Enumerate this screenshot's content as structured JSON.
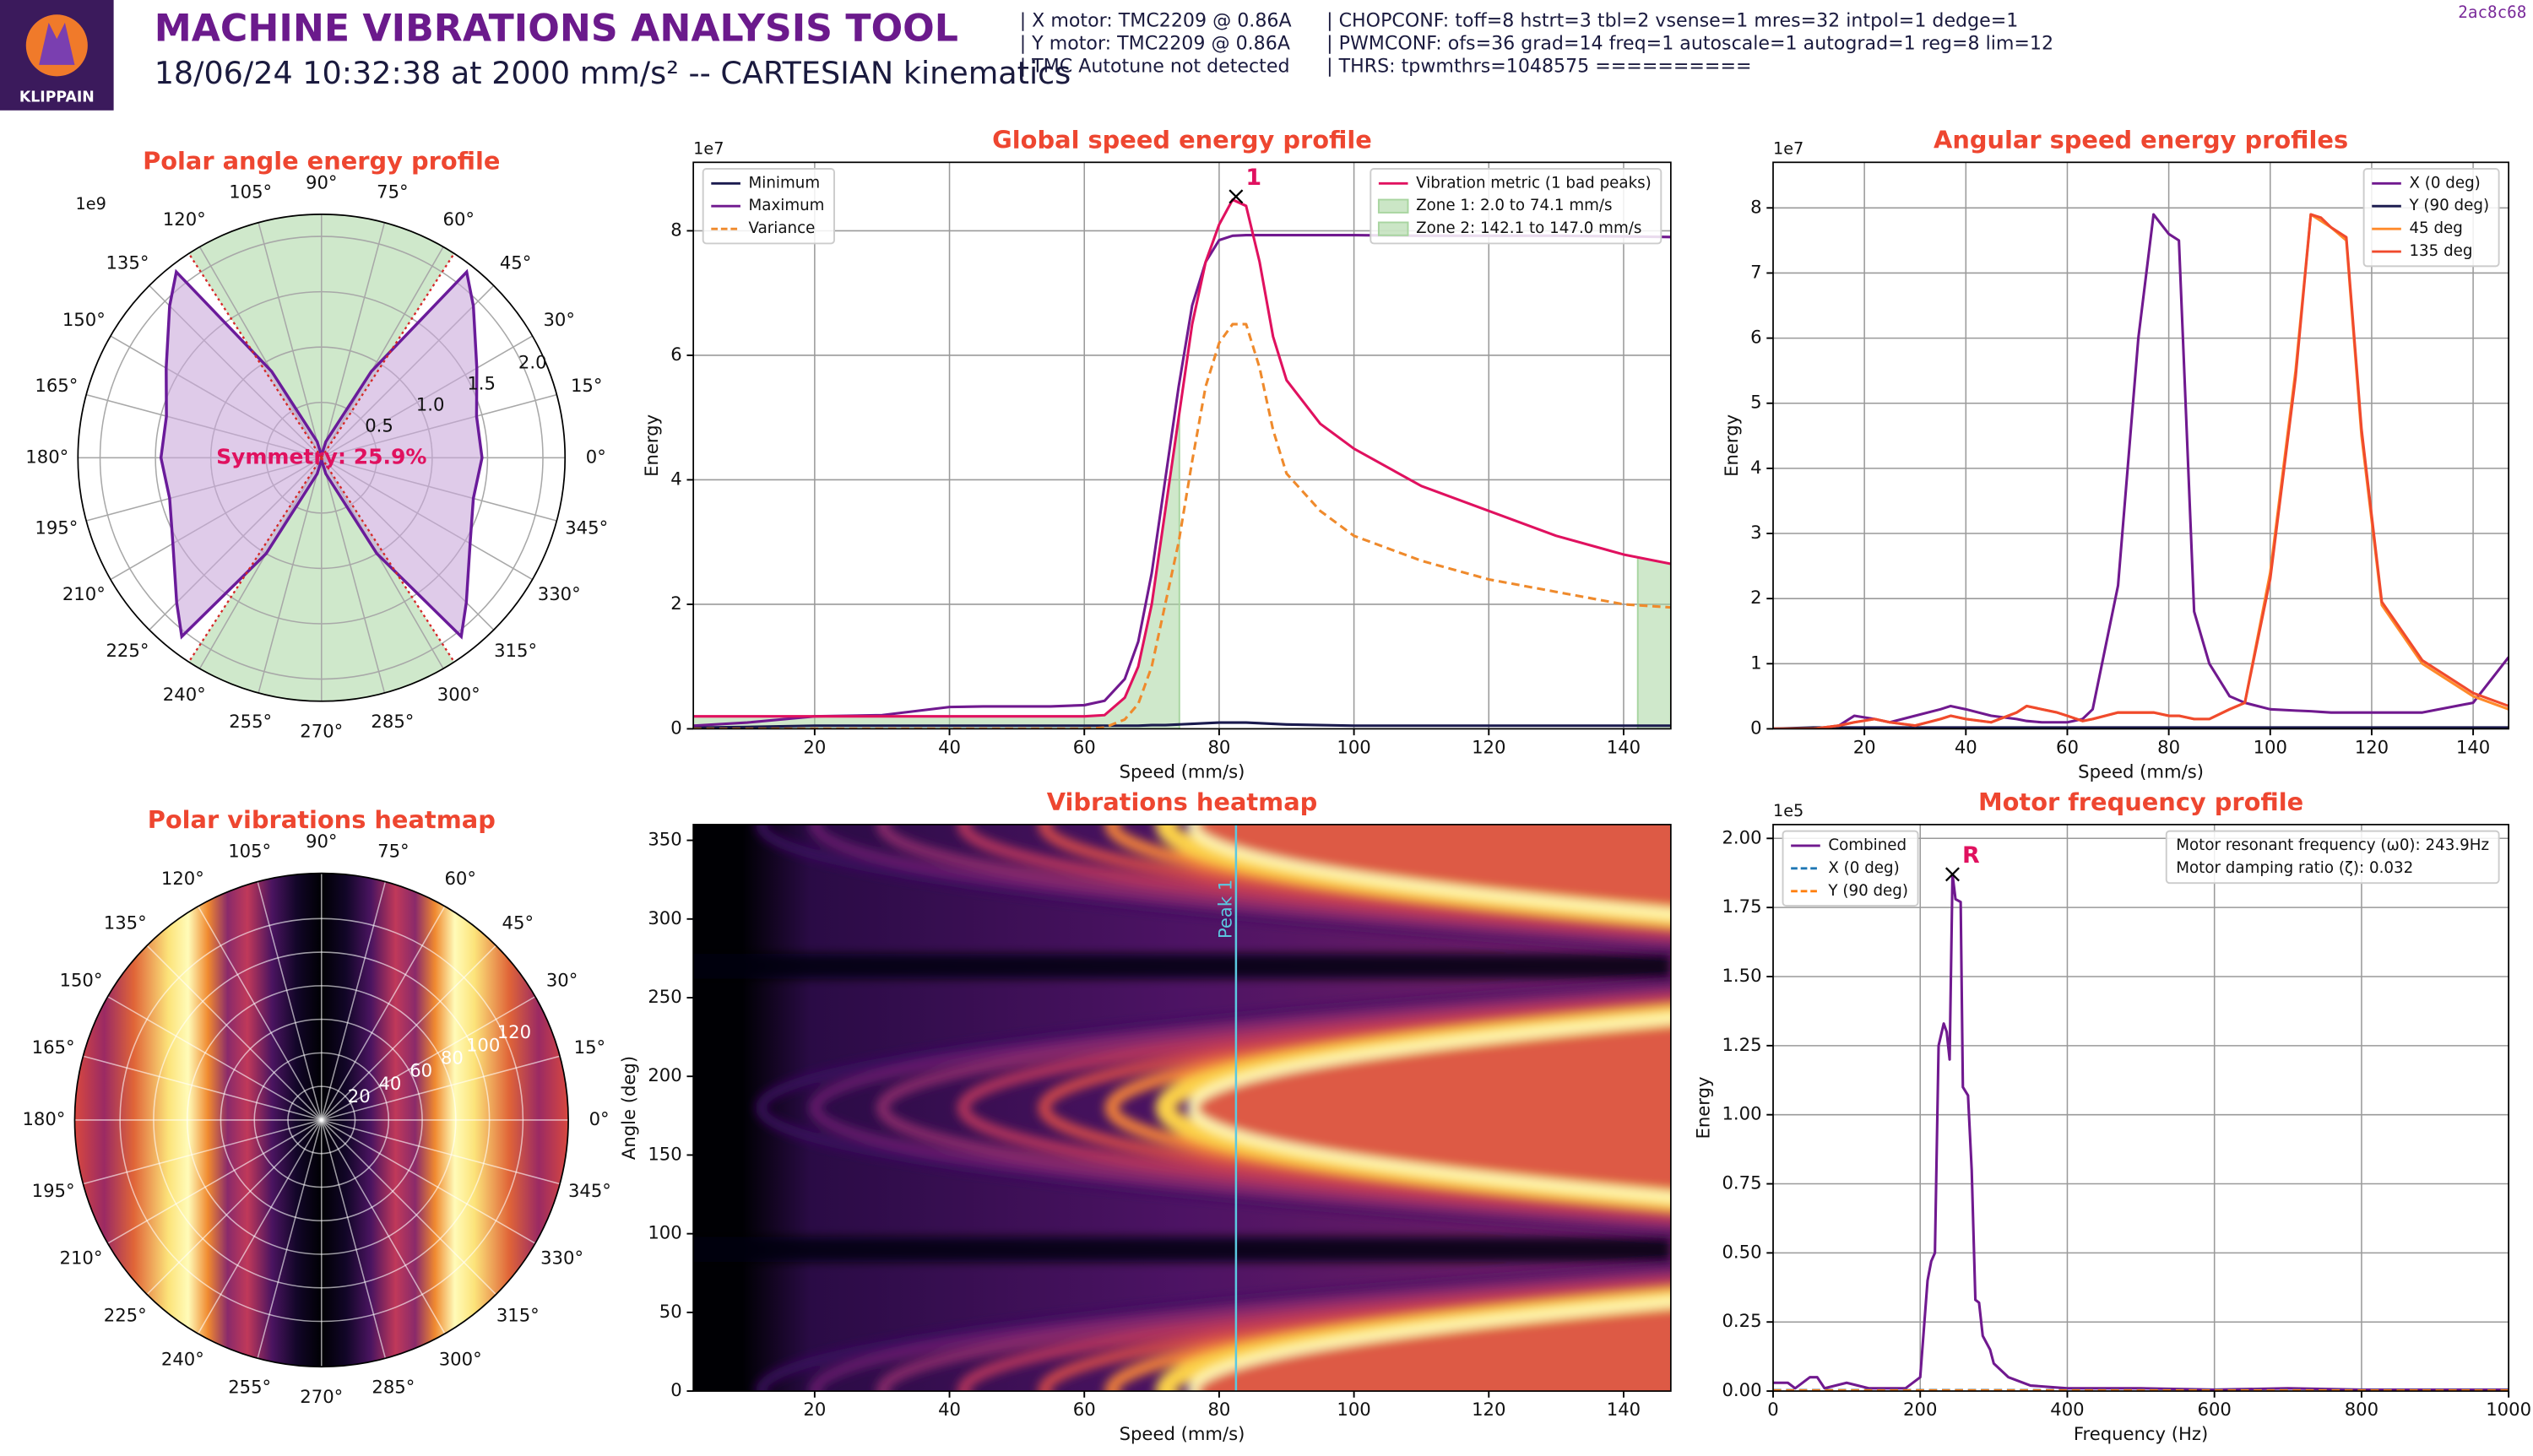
{
  "header": {
    "title": "MACHINE VIBRATIONS ANALYSIS TOOL",
    "subtitle": "18/06/24 10:32:38 at 2000 mm/s² -- CARTESIAN kinematics",
    "logo_text": "KLIPPAIN",
    "motor_info": [
      "| X motor: TMC2209 @ 0.86A",
      "| Y motor: TMC2209 @ 0.86A",
      "| TMC Autotune not detected"
    ],
    "tmc_info": [
      "| CHOPCONF: toff=8 hstrt=3 tbl=2 vsense=1 mres=32 intpol=1 dedge=1",
      "| PWMCONF: ofs=36 grad=14 freq=1 autoscale=1 autograd=1 reg=8 lim=12",
      "| THRS: tpwmthrs=1048575 =========="
    ],
    "version": "2ac8c68"
  },
  "chart_data": [
    {
      "type": "polar",
      "title": "Polar angle energy profile",
      "r_offset_label": "1e9",
      "rlim": [
        0,
        2.2
      ],
      "rticks": [
        0.5,
        {
          "value": 1,
          "label": "1.0"
        },
        1.5,
        {
          "value": 2,
          "label": "2.0"
        }
      ],
      "thetaticks": [
        {
          "value": 0,
          "label": "0°"
        },
        {
          "value": 15,
          "label": "15°"
        },
        {
          "value": 30,
          "label": "30°"
        },
        {
          "value": 45,
          "label": "45°"
        },
        {
          "value": 60,
          "label": "60°"
        },
        {
          "value": 75,
          "label": "75°"
        },
        {
          "value": 90,
          "label": "90°"
        },
        {
          "value": 105,
          "label": "105°"
        },
        {
          "value": 120,
          "label": "120°"
        },
        {
          "value": 135,
          "label": "135°"
        },
        {
          "value": 150,
          "label": "150°"
        },
        {
          "value": 165,
          "label": "165°"
        },
        {
          "value": 180,
          "label": "180°"
        },
        {
          "value": 195,
          "label": "195°"
        },
        {
          "value": 210,
          "label": "210°"
        },
        {
          "value": 225,
          "label": "225°"
        },
        {
          "value": 240,
          "label": "240°"
        },
        {
          "value": 255,
          "label": "255°"
        },
        {
          "value": 270,
          "label": "270°"
        },
        {
          "value": 285,
          "label": "285°"
        },
        {
          "value": 300,
          "label": "300°"
        },
        {
          "value": 315,
          "label": "315°"
        },
        {
          "value": 330,
          "label": "330°"
        },
        {
          "value": 345,
          "label": "345°"
        }
      ],
      "theta": [
        0,
        15,
        30,
        45,
        52,
        60,
        75,
        90,
        105,
        120,
        128,
        135,
        150,
        165,
        180,
        195,
        210,
        225,
        232,
        240,
        255,
        270,
        285,
        300,
        308,
        315,
        330,
        345
      ],
      "series": [
        {
          "color": "#6a1b9a",
          "fill": "#c9a8db",
          "values": [
            1.45,
            1.45,
            1.62,
            1.94,
            2.13,
            0.9,
            0.15,
            0.02,
            0.15,
            0.9,
            2.13,
            1.94,
            1.62,
            1.45,
            1.45,
            1.42,
            1.55,
            1.85,
            2.05,
            1.0,
            0.15,
            0.02,
            0.15,
            1.0,
            2.05,
            1.85,
            1.55,
            1.42
          ]
        }
      ],
      "zones": [
        {
          "start": 57,
          "end": 123
        },
        {
          "start": 237,
          "end": 303
        }
      ],
      "zone_color": "#a8d5a0",
      "zone_edge_color": "#d62728",
      "annotation": "Symmetry: 25.9%",
      "annotation_color": "#e0115f"
    },
    {
      "type": "line",
      "title": "Global speed energy profile",
      "xlabel": "Speed (mm/s)",
      "ylabel": "Energy",
      "y_offset_label": "1e7",
      "xlim": [
        2,
        147
      ],
      "ylim": [
        0,
        9.1
      ],
      "xticks": [
        20,
        40,
        60,
        80,
        100,
        120,
        140
      ],
      "yticks": [
        0,
        2,
        4,
        6,
        8
      ],
      "grid": true,
      "legend": "upper left",
      "x": [
        2,
        10,
        20,
        30,
        40,
        45,
        50,
        55,
        60,
        63,
        66,
        68,
        70,
        72,
        74,
        76,
        78,
        80,
        82,
        84,
        86,
        88,
        90,
        95,
        100,
        110,
        120,
        130,
        140,
        147
      ],
      "series": [
        {
          "name": "Minimum",
          "color": "#1a1a4e",
          "values": [
            0.02,
            0.03,
            0.05,
            0.05,
            0.05,
            0.05,
            0.05,
            0.05,
            0.05,
            0.05,
            0.05,
            0.05,
            0.06,
            0.06,
            0.07,
            0.08,
            0.09,
            0.1,
            0.1,
            0.1,
            0.09,
            0.08,
            0.07,
            0.06,
            0.05,
            0.05,
            0.05,
            0.05,
            0.05,
            0.05
          ]
        },
        {
          "name": "Maximum",
          "color": "#70198f",
          "values": [
            0.05,
            0.1,
            0.2,
            0.22,
            0.35,
            0.36,
            0.36,
            0.36,
            0.38,
            0.45,
            0.8,
            1.4,
            2.5,
            4.0,
            5.5,
            6.8,
            7.5,
            7.85,
            7.92,
            7.93,
            7.93,
            7.93,
            7.93,
            7.93,
            7.93,
            7.92,
            7.92,
            7.92,
            7.91,
            7.9
          ]
        },
        {
          "name": "Variance",
          "color": "#ef8a2c",
          "linestyle": "dashed",
          "values": [
            0,
            0,
            0,
            0,
            0,
            0,
            0,
            0,
            0,
            0.02,
            0.15,
            0.4,
            1.0,
            2.0,
            3.0,
            4.3,
            5.5,
            6.2,
            6.5,
            6.5,
            5.8,
            4.8,
            4.1,
            3.5,
            3.1,
            2.7,
            2.4,
            2.2,
            2.0,
            1.95
          ]
        },
        {
          "name": "Vibration metric (1 bad peaks)",
          "color": "#e0115f",
          "legend": "upper right",
          "values": [
            0.2,
            0.2,
            0.2,
            0.2,
            0.2,
            0.2,
            0.2,
            0.2,
            0.2,
            0.22,
            0.5,
            1.0,
            2.0,
            3.5,
            5.0,
            6.5,
            7.5,
            8.1,
            8.5,
            8.4,
            7.5,
            6.3,
            5.6,
            4.9,
            4.5,
            3.9,
            3.5,
            3.1,
            2.8,
            2.65
          ],
          "zones": [
            {
              "name": "Zone 1: 2.0 to 74.1 mm/s",
              "start": 2.0,
              "end": 74.1,
              "color": "#a8d5a0"
            },
            {
              "name": "Zone 2: 142.1 to 147.0 mm/s",
              "start": 142.1,
              "end": 147.0,
              "color": "#a8d5a0"
            }
          ]
        }
      ],
      "peaks": [
        {
          "label": "1",
          "x": 82.5,
          "y": 8.55,
          "color": "#e0115f"
        }
      ]
    },
    {
      "type": "line",
      "title": "Angular speed energy profiles",
      "xlabel": "Speed (mm/s)",
      "ylabel": "Energy",
      "y_offset_label": "1e7",
      "xlim": [
        2,
        147
      ],
      "ylim": [
        0,
        8.7
      ],
      "xticks": [
        20,
        40,
        60,
        80,
        100,
        120,
        140
      ],
      "yticks": [
        0,
        1,
        2,
        3,
        4,
        5,
        6,
        7,
        8
      ],
      "grid": true,
      "legend": "upper right",
      "x": [
        2,
        10,
        15,
        18,
        22,
        25,
        30,
        35,
        37,
        40,
        45,
        50,
        52,
        55,
        58,
        60,
        63,
        65,
        70,
        74,
        77,
        80,
        82,
        85,
        88,
        92,
        95,
        100,
        105,
        108,
        110,
        112,
        115,
        118,
        122,
        130,
        140,
        147
      ],
      "series": [
        {
          "name": "X (0 deg)",
          "color": "#70198f",
          "values": [
            0,
            0,
            0.05,
            0.2,
            0.15,
            0.1,
            0.2,
            0.3,
            0.35,
            0.3,
            0.2,
            0.15,
            0.12,
            0.1,
            0.1,
            0.1,
            0.15,
            0.3,
            2.2,
            6,
            7.9,
            7.6,
            7.5,
            1.8,
            1.0,
            0.5,
            0.4,
            0.3,
            0.28,
            0.27,
            0.26,
            0.25,
            0.25,
            0.25,
            0.25,
            0.25,
            0.4,
            1.1
          ]
        },
        {
          "name": "Y (90 deg)",
          "color": "#1a1a4e",
          "values": [
            0,
            0.02,
            0.02,
            0.02,
            0.02,
            0.02,
            0.02,
            0.02,
            0.02,
            0.02,
            0.02,
            0.02,
            0.02,
            0.02,
            0.02,
            0.02,
            0.02,
            0.02,
            0.02,
            0.02,
            0.02,
            0.02,
            0.02,
            0.02,
            0.02,
            0.02,
            0.02,
            0.02,
            0.02,
            0.02,
            0.02,
            0.02,
            0.02,
            0.02,
            0.02,
            0.02,
            0.02,
            0.02
          ]
        },
        {
          "name": "45 deg",
          "color": "#ff8a2a",
          "values": [
            0,
            0,
            0.05,
            0.1,
            0.15,
            0.1,
            0.05,
            0.15,
            0.2,
            0.15,
            0.1,
            0.25,
            0.35,
            0.3,
            0.25,
            0.2,
            0.12,
            0.15,
            0.25,
            0.25,
            0.25,
            0.2,
            0.2,
            0.15,
            0.15,
            0.3,
            0.4,
            2.4,
            5.5,
            7.9,
            7.8,
            7.7,
            7.5,
            4.5,
            1.9,
            1.0,
            0.5,
            0.3
          ]
        },
        {
          "name": "135 deg",
          "color": "#f04a2d",
          "values": [
            0,
            0,
            0.05,
            0.1,
            0.15,
            0.1,
            0.05,
            0.15,
            0.2,
            0.15,
            0.1,
            0.25,
            0.35,
            0.3,
            0.25,
            0.2,
            0.12,
            0.15,
            0.25,
            0.25,
            0.25,
            0.2,
            0.2,
            0.15,
            0.15,
            0.3,
            0.4,
            2.3,
            5.4,
            7.9,
            7.85,
            7.7,
            7.55,
            4.6,
            1.95,
            1.05,
            0.55,
            0.35
          ]
        }
      ]
    },
    {
      "type": "polarheatmap",
      "title": "Polar vibrations heatmap",
      "rlim": [
        0,
        147
      ],
      "rticks": [
        20,
        40,
        60,
        80,
        100,
        120
      ],
      "thetaticks": [
        {
          "value": 0,
          "label": "0°"
        },
        {
          "value": 15,
          "label": "15°"
        },
        {
          "value": 30,
          "label": "30°"
        },
        {
          "value": 45,
          "label": "45°"
        },
        {
          "value": 60,
          "label": "60°"
        },
        {
          "value": 75,
          "label": "75°"
        },
        {
          "value": 90,
          "label": "90°"
        },
        {
          "value": 105,
          "label": "105°"
        },
        {
          "value": 120,
          "label": "120°"
        },
        {
          "value": 135,
          "label": "135°"
        },
        {
          "value": 150,
          "label": "150°"
        },
        {
          "value": 165,
          "label": "165°"
        },
        {
          "value": 180,
          "label": "180°"
        },
        {
          "value": 195,
          "label": "195°"
        },
        {
          "value": 210,
          "label": "210°"
        },
        {
          "value": 225,
          "label": "225°"
        },
        {
          "value": 240,
          "label": "240°"
        },
        {
          "value": 255,
          "label": "255°"
        },
        {
          "value": 270,
          "label": "270°"
        },
        {
          "value": 285,
          "label": "285°"
        },
        {
          "value": 300,
          "label": "300°"
        },
        {
          "value": 315,
          "label": "315°"
        },
        {
          "value": 330,
          "label": "330°"
        },
        {
          "value": 345,
          "label": "345°"
        }
      ]
    },
    {
      "type": "heatmap",
      "title": "Vibrations heatmap",
      "xlabel": "Speed (mm/s)",
      "ylabel": "Angle (deg)",
      "xlim": [
        2,
        147
      ],
      "ylim": [
        0,
        360
      ],
      "xticks": [
        20,
        40,
        60,
        80,
        100,
        120,
        140
      ],
      "yticks": [
        0,
        50,
        100,
        150,
        200,
        250,
        300,
        350
      ],
      "grid": false,
      "peak_lines": [
        {
          "label": "Peak 1",
          "x": 82.5,
          "color": "#5bc8e0"
        }
      ]
    },
    {
      "type": "line",
      "title": "Motor frequency profile",
      "xlabel": "Frequency (Hz)",
      "ylabel": "Energy",
      "y_offset_label": "1e5",
      "xlim": [
        0,
        1000
      ],
      "ylim": [
        0,
        2.05
      ],
      "xticks": [
        0,
        200,
        400,
        600,
        800,
        1000
      ],
      "yticks": [
        {
          "value": 0,
          "label": "0.00"
        },
        {
          "value": 0.25,
          "label": "0.25"
        },
        {
          "value": 0.5,
          "label": "0.50"
        },
        {
          "value": 0.75,
          "label": "0.75"
        },
        {
          "value": 1,
          "label": "1.00"
        },
        {
          "value": 1.25,
          "label": "1.25"
        },
        {
          "value": 1.5,
          "label": "1.50"
        },
        {
          "value": 1.75,
          "label": "1.75"
        },
        {
          "value": 2,
          "label": "2.00"
        }
      ],
      "grid": true,
      "legend": "upper left",
      "notes_legend": "upper right",
      "notes": [
        "Motor resonant frequency (ω0): 243.9Hz",
        "Motor damping ratio (ζ): 0.032"
      ],
      "x": [
        0,
        20,
        30,
        50,
        60,
        70,
        100,
        130,
        180,
        200,
        210,
        215,
        220,
        225,
        232,
        236,
        240,
        243.9,
        248,
        255,
        258,
        265,
        270,
        275,
        280,
        285,
        295,
        300,
        320,
        350,
        400,
        500,
        600,
        700,
        800,
        1000
      ],
      "series": [
        {
          "name": "Combined",
          "color": "#70198f",
          "values": [
            0.03,
            0.03,
            0.01,
            0.05,
            0.05,
            0.01,
            0.03,
            0.01,
            0.01,
            0.05,
            0.4,
            0.47,
            0.5,
            1.25,
            1.33,
            1.3,
            1.2,
            1.87,
            1.78,
            1.77,
            1.1,
            1.07,
            0.8,
            0.33,
            0.32,
            0.2,
            0.15,
            0.1,
            0.05,
            0.02,
            0.01,
            0.01,
            0.005,
            0.01,
            0.005,
            0.005
          ]
        },
        {
          "name": "X (0 deg)",
          "color": "#1f77b4",
          "linestyle": "dashed",
          "values": [
            0.003,
            0.003,
            0.003,
            0.003,
            0.003,
            0.003,
            0.003,
            0.003,
            0.003,
            0.003,
            0.003,
            0.003,
            0.003,
            0.003,
            0.003,
            0.003,
            0.003,
            0.003,
            0.003,
            0.003,
            0.003,
            0.003,
            0.003,
            0.003,
            0.003,
            0.003,
            0.003,
            0.003,
            0.003,
            0.003,
            0.003,
            0.003,
            0.003,
            0.003,
            0.003,
            0.003
          ]
        },
        {
          "name": "Y (90 deg)",
          "color": "#ff7f0e",
          "linestyle": "dashed",
          "values": [
            0.002,
            0.002,
            0.002,
            0.002,
            0.002,
            0.002,
            0.002,
            0.002,
            0.002,
            0.002,
            0.002,
            0.002,
            0.002,
            0.002,
            0.002,
            0.002,
            0.002,
            0.002,
            0.002,
            0.002,
            0.002,
            0.002,
            0.002,
            0.002,
            0.002,
            0.002,
            0.002,
            0.002,
            0.002,
            0.002,
            0.002,
            0.002,
            0.002,
            0.002,
            0.002,
            0.002
          ]
        }
      ],
      "peaks": [
        {
          "label": "R",
          "x": 243.9,
          "y": 1.87,
          "color": "#e0115f"
        }
      ]
    }
  ]
}
